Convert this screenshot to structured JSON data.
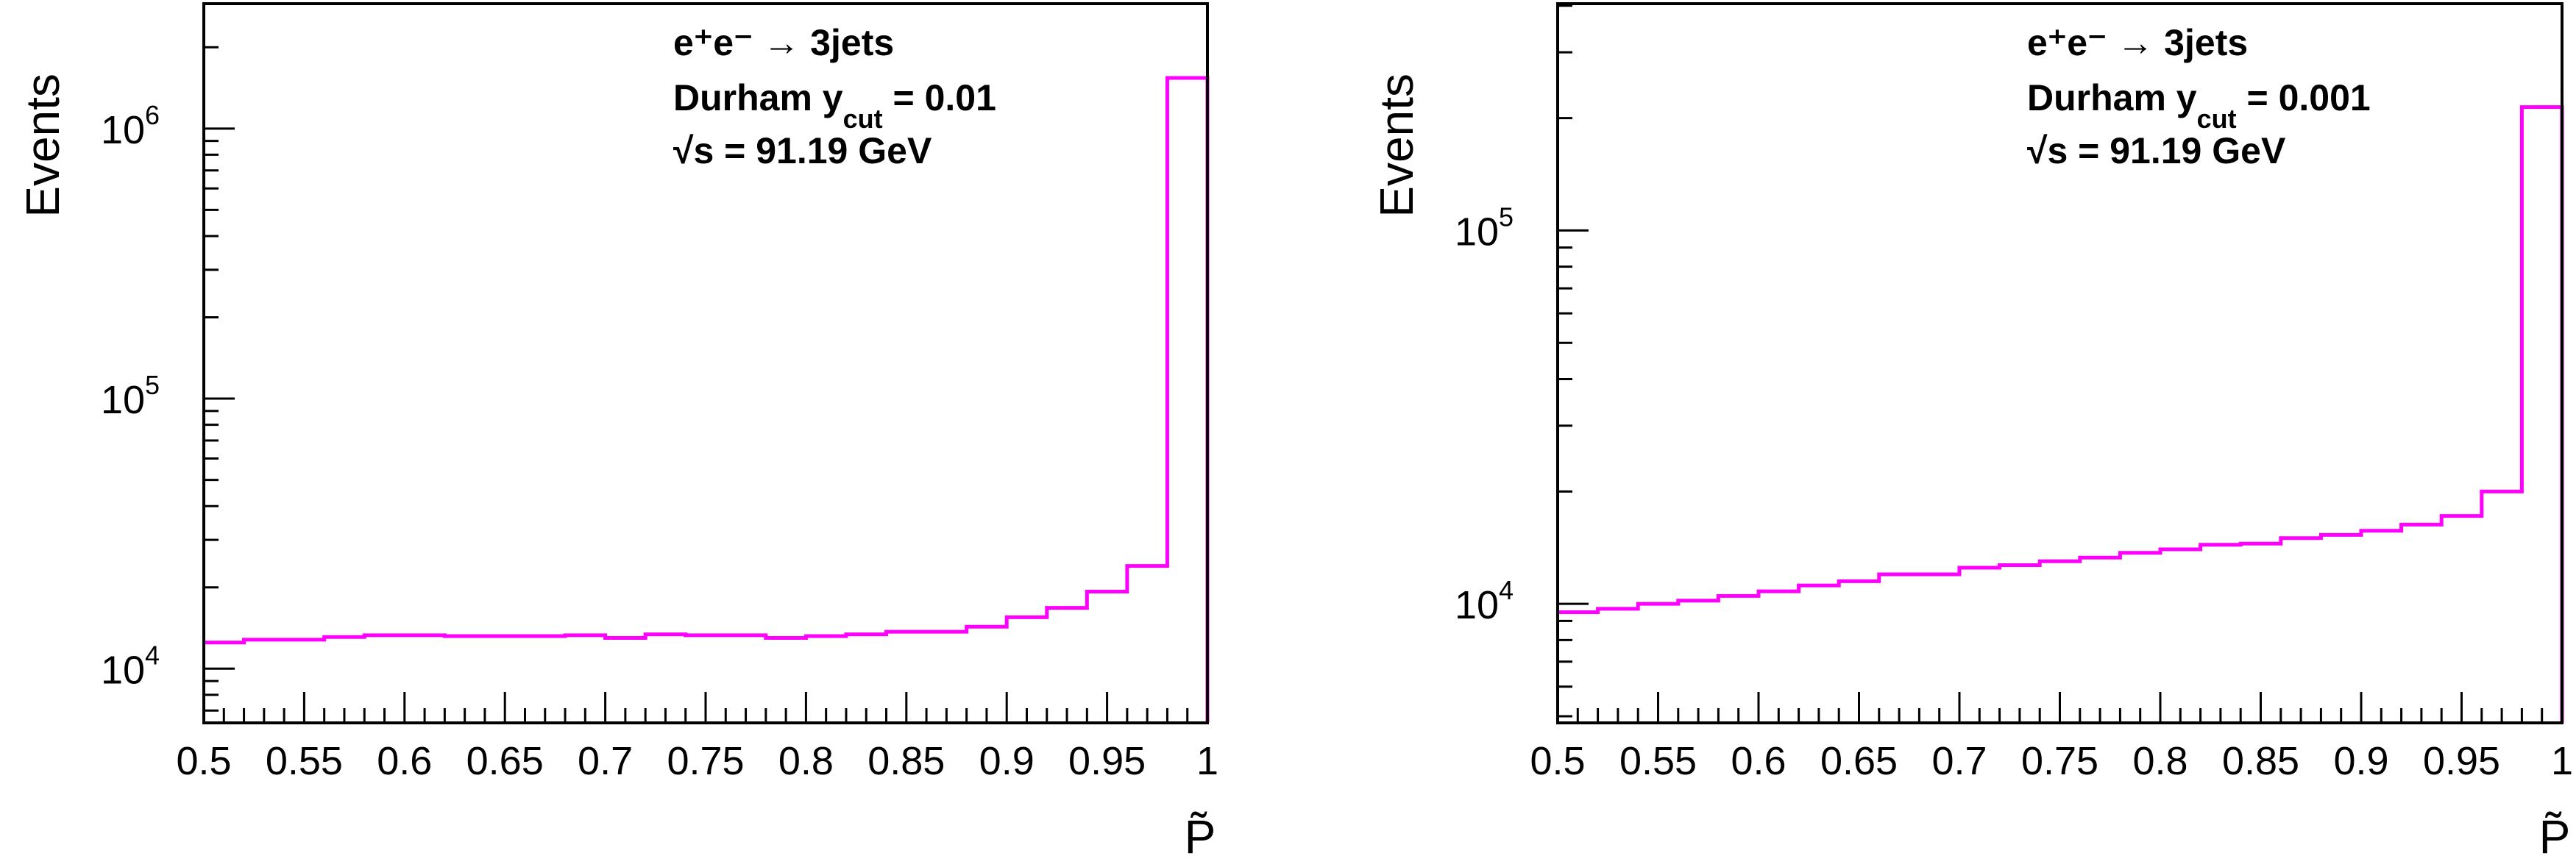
{
  "chart_data": [
    {
      "type": "bar",
      "style": "step-histogram",
      "color": "#ff00ff",
      "xlabel": "P̃",
      "ylabel": "Events",
      "xlim": [
        0.5,
        1.0
      ],
      "ylim": [
        6300,
        2900000
      ],
      "yscale": "log",
      "grid": false,
      "x_tick_labels": [
        "0.5",
        "0.55",
        "0.6",
        "0.65",
        "0.7",
        "0.75",
        "0.8",
        "0.85",
        "0.9",
        "0.95",
        "1"
      ],
      "y_tick_labels": [
        {
          "base": "10",
          "exp": "4",
          "value": 10000
        },
        {
          "base": "10",
          "exp": "5",
          "value": 100000
        },
        {
          "base": "10",
          "exp": "6",
          "value": 1000000
        }
      ],
      "annotations": {
        "process": "e⁺e⁻ → 3jets",
        "cut_prefix": "Durham y",
        "cut_sub": "cut",
        "cut_value": " = 0.01",
        "energy": "√s = 91.19 GeV"
      },
      "bin_edges": [
        0.5,
        0.52,
        0.54,
        0.56,
        0.58,
        0.6,
        0.62,
        0.64,
        0.66,
        0.68,
        0.7,
        0.72,
        0.74,
        0.76,
        0.78,
        0.8,
        0.82,
        0.84,
        0.86,
        0.88,
        0.9,
        0.92,
        0.94,
        0.96,
        0.98,
        1.0
      ],
      "values": [
        12500,
        12800,
        12800,
        13100,
        13300,
        13300,
        13200,
        13200,
        13200,
        13300,
        13000,
        13400,
        13300,
        13300,
        13000,
        13200,
        13400,
        13700,
        13700,
        14300,
        15500,
        16800,
        19300,
        24000,
        1540000
      ]
    },
    {
      "type": "bar",
      "style": "step-histogram",
      "color": "#ff00ff",
      "xlabel": "P̃",
      "ylabel": "Events",
      "xlim": [
        0.5,
        1.0
      ],
      "ylim": [
        4800,
        405000
      ],
      "yscale": "log",
      "grid": false,
      "x_tick_labels": [
        "0.5",
        "0.55",
        "0.6",
        "0.65",
        "0.7",
        "0.75",
        "0.8",
        "0.85",
        "0.9",
        "0.95",
        "1"
      ],
      "y_tick_labels": [
        {
          "base": "10",
          "exp": "4",
          "value": 10000
        },
        {
          "base": "10",
          "exp": "5",
          "value": 100000
        }
      ],
      "annotations": {
        "process": "e⁺e⁻ → 3jets",
        "cut_prefix": "Durham y",
        "cut_sub": "cut",
        "cut_value": " = 0.001",
        "energy": "√s = 91.19 GeV"
      },
      "bin_edges": [
        0.5,
        0.52,
        0.54,
        0.56,
        0.58,
        0.6,
        0.62,
        0.64,
        0.66,
        0.68,
        0.7,
        0.72,
        0.74,
        0.76,
        0.78,
        0.8,
        0.82,
        0.84,
        0.86,
        0.88,
        0.9,
        0.92,
        0.94,
        0.96,
        0.98,
        1.0
      ],
      "values": [
        9500,
        9700,
        10000,
        10200,
        10500,
        10800,
        11200,
        11500,
        12000,
        12000,
        12500,
        12700,
        13000,
        13300,
        13700,
        14000,
        14400,
        14500,
        15000,
        15300,
        15700,
        16300,
        17200,
        20000,
        214000
      ]
    }
  ]
}
